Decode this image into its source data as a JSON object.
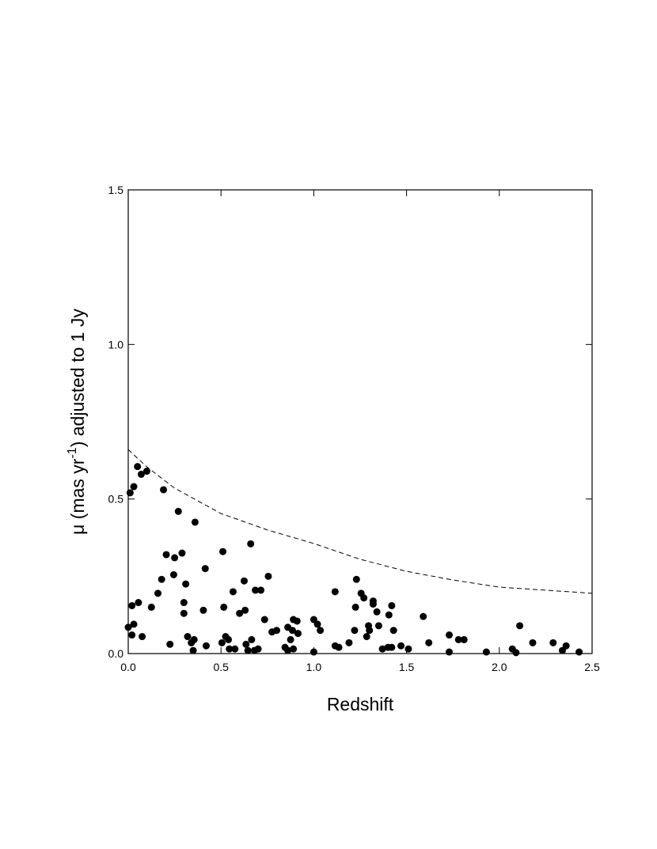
{
  "chart_data": {
    "type": "scatter",
    "xlabel": "Redshift",
    "ylabel_parts": [
      "μ (mas yr",
      "-1",
      ") adjusted to 1 Jy"
    ],
    "color": "#000000",
    "xlim": [
      0,
      2.5
    ],
    "xticks": [
      {
        "value": 0,
        "label": "0.0"
      },
      0.5,
      {
        "value": 1,
        "label": "1.0"
      },
      1.5,
      {
        "value": 2,
        "label": "2.0"
      },
      2.5
    ],
    "ylim": [
      0,
      1.5
    ],
    "yticks": [
      {
        "value": 0,
        "label": "0.0"
      },
      0.5,
      {
        "value": 1,
        "label": "1.0"
      },
      1.5
    ],
    "x": [
      0.0,
      0.01,
      0.02,
      0.02,
      0.03,
      0.03,
      0.055,
      0.05,
      0.07,
      0.075,
      0.1,
      0.125,
      0.16,
      0.18,
      0.19,
      0.205,
      0.225,
      0.245,
      0.25,
      0.27,
      0.29,
      0.3,
      0.3,
      0.31,
      0.32,
      0.34,
      0.35,
      0.355,
      0.36,
      0.405,
      0.415,
      0.42,
      0.505,
      0.51,
      0.515,
      0.525,
      0.54,
      0.545,
      0.565,
      0.575,
      0.6,
      0.625,
      0.63,
      0.635,
      0.645,
      0.665,
      0.66,
      0.68,
      0.685,
      0.7,
      0.715,
      0.735,
      0.755,
      0.775,
      0.8,
      0.845,
      0.86,
      0.86,
      0.875,
      0.885,
      0.89,
      0.89,
      0.91,
      0.915,
      1.0,
      1.0,
      1.02,
      1.035,
      1.115,
      1.115,
      1.135,
      1.19,
      1.22,
      1.225,
      1.23,
      1.255,
      1.27,
      1.285,
      1.295,
      1.3,
      1.32,
      1.32,
      1.34,
      1.35,
      1.37,
      1.4,
      1.405,
      1.42,
      1.42,
      1.43,
      1.47,
      1.51,
      1.59,
      1.62,
      1.73,
      1.73,
      1.78,
      1.81,
      1.93,
      2.07,
      2.09,
      2.11,
      2.18,
      2.29,
      2.34,
      2.36,
      2.43
    ],
    "values": [
      0.085,
      0.52,
      0.155,
      0.06,
      0.095,
      0.54,
      0.165,
      0.605,
      0.58,
      0.055,
      0.59,
      0.15,
      0.195,
      0.24,
      0.53,
      0.32,
      0.03,
      0.255,
      0.31,
      0.46,
      0.325,
      0.165,
      0.13,
      0.225,
      0.055,
      0.035,
      0.01,
      0.045,
      0.425,
      0.14,
      0.275,
      0.025,
      0.035,
      0.33,
      0.15,
      0.055,
      0.045,
      0.015,
      0.2,
      0.015,
      0.13,
      0.235,
      0.14,
      0.03,
      0.01,
      0.045,
      0.355,
      0.01,
      0.205,
      0.015,
      0.205,
      0.11,
      0.25,
      0.07,
      0.075,
      0.02,
      0.085,
      0.01,
      0.045,
      0.075,
      0.015,
      0.11,
      0.105,
      0.065,
      0.11,
      0.005,
      0.095,
      0.075,
      0.2,
      0.025,
      0.02,
      0.035,
      0.075,
      0.15,
      0.24,
      0.195,
      0.18,
      0.055,
      0.09,
      0.075,
      0.17,
      0.16,
      0.135,
      0.09,
      0.015,
      0.02,
      0.125,
      0.02,
      0.155,
      0.075,
      0.025,
      0.015,
      0.12,
      0.035,
      0.06,
      0.005,
      0.045,
      0.045,
      0.005,
      0.015,
      0.003,
      0.09,
      0.035,
      0.035,
      0.01,
      0.025,
      0.005
    ],
    "curve": {
      "style": "dashed",
      "x": [
        0,
        0.1,
        0.25,
        0.5,
        0.75,
        1.0,
        1.25,
        1.5,
        1.75,
        2.0,
        2.25,
        2.5
      ],
      "values": [
        0.66,
        0.604,
        0.535,
        0.453,
        0.4,
        0.356,
        0.305,
        0.266,
        0.238,
        0.215,
        0.205,
        0.195
      ]
    }
  }
}
